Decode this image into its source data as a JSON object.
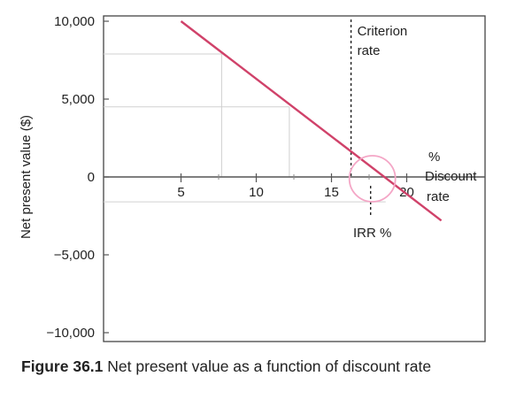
{
  "chart_data": {
    "type": "line",
    "title": "",
    "xlabel": "% Discount rate",
    "ylabel": "Net present value ($)",
    "xlim": [
      0,
      25
    ],
    "ylim": [
      -10000,
      10000
    ],
    "x_ticks": [
      5,
      10,
      15,
      20
    ],
    "x_tick_labels": [
      "5",
      "10",
      "15",
      "20"
    ],
    "y_ticks": [
      10000,
      5000,
      0,
      -5000,
      -10000
    ],
    "y_tick_labels": [
      "10,000",
      "5,000",
      "0",
      "−5,000",
      "−10,000"
    ],
    "series": [
      {
        "points": [
          [
            5,
            10000
          ],
          [
            22.3,
            -2800
          ]
        ],
        "color": "#d0426a"
      }
    ],
    "reference_points": [
      {
        "x": 7.7,
        "y": 7900
      },
      {
        "x": 12.2,
        "y": 4500
      },
      {
        "x": 0,
        "y": -1600
      }
    ],
    "criterion_rate": {
      "x": 16.3,
      "label_line1": "Criterion",
      "label_line2": "rate"
    },
    "irr": {
      "x": 17.6,
      "label": "IRR %",
      "circle_color": "#f4a6c6"
    },
    "x_axis_label_lines": [
      "%",
      "Discount",
      "rate"
    ],
    "grid": false,
    "legend": "none"
  },
  "caption": {
    "figure_number": "Figure 36.1",
    "text": "Net present value as a function of discount rate"
  }
}
